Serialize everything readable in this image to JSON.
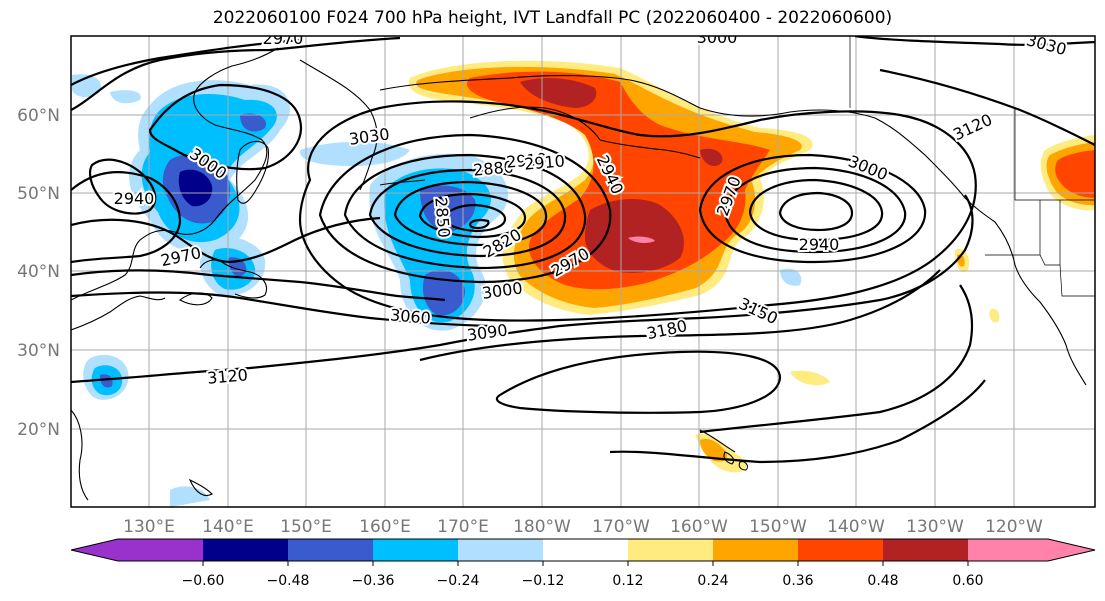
{
  "title": "2022060100 F024 700 hPa height, IVT Landfall PC (2022060400 - 2022060600)",
  "colors": {
    "neg060": "#9932cc",
    "neg048": "#00008b",
    "neg036": "#3a5bcd",
    "neg024": "#00bfff",
    "neg012": "#b0e0fe",
    "neutral": "#ffffff",
    "pos012": "#ffeb80",
    "pos024": "#ffa500",
    "pos036": "#ff4500",
    "pos048": "#b22222",
    "pos060": "#ff82ab"
  },
  "lat_labels": [
    "60°N",
    "50°N",
    "40°N",
    "30°N",
    "20°N"
  ],
  "lon_labels": [
    "130°E",
    "140°E",
    "150°E",
    "160°E",
    "170°E",
    "180°W",
    "170°W",
    "160°W",
    "150°W",
    "140°W",
    "130°W",
    "120°W"
  ],
  "contour_labels": [
    "2970",
    "3000",
    "3030",
    "3030",
    "3120",
    "2940",
    "3000",
    "3000",
    "2940",
    "2970",
    "2970",
    "2940",
    "2850",
    "2880",
    "2910",
    "2820",
    "2970",
    "3000",
    "3060",
    "3090",
    "3120",
    "3150",
    "3180",
    "2910"
  ],
  "colorbar": {
    "ticks": [
      "−0.60",
      "−0.48",
      "−0.36",
      "−0.24",
      "−0.12",
      "0.12",
      "0.24",
      "0.36",
      "0.48",
      "0.60"
    ]
  }
}
